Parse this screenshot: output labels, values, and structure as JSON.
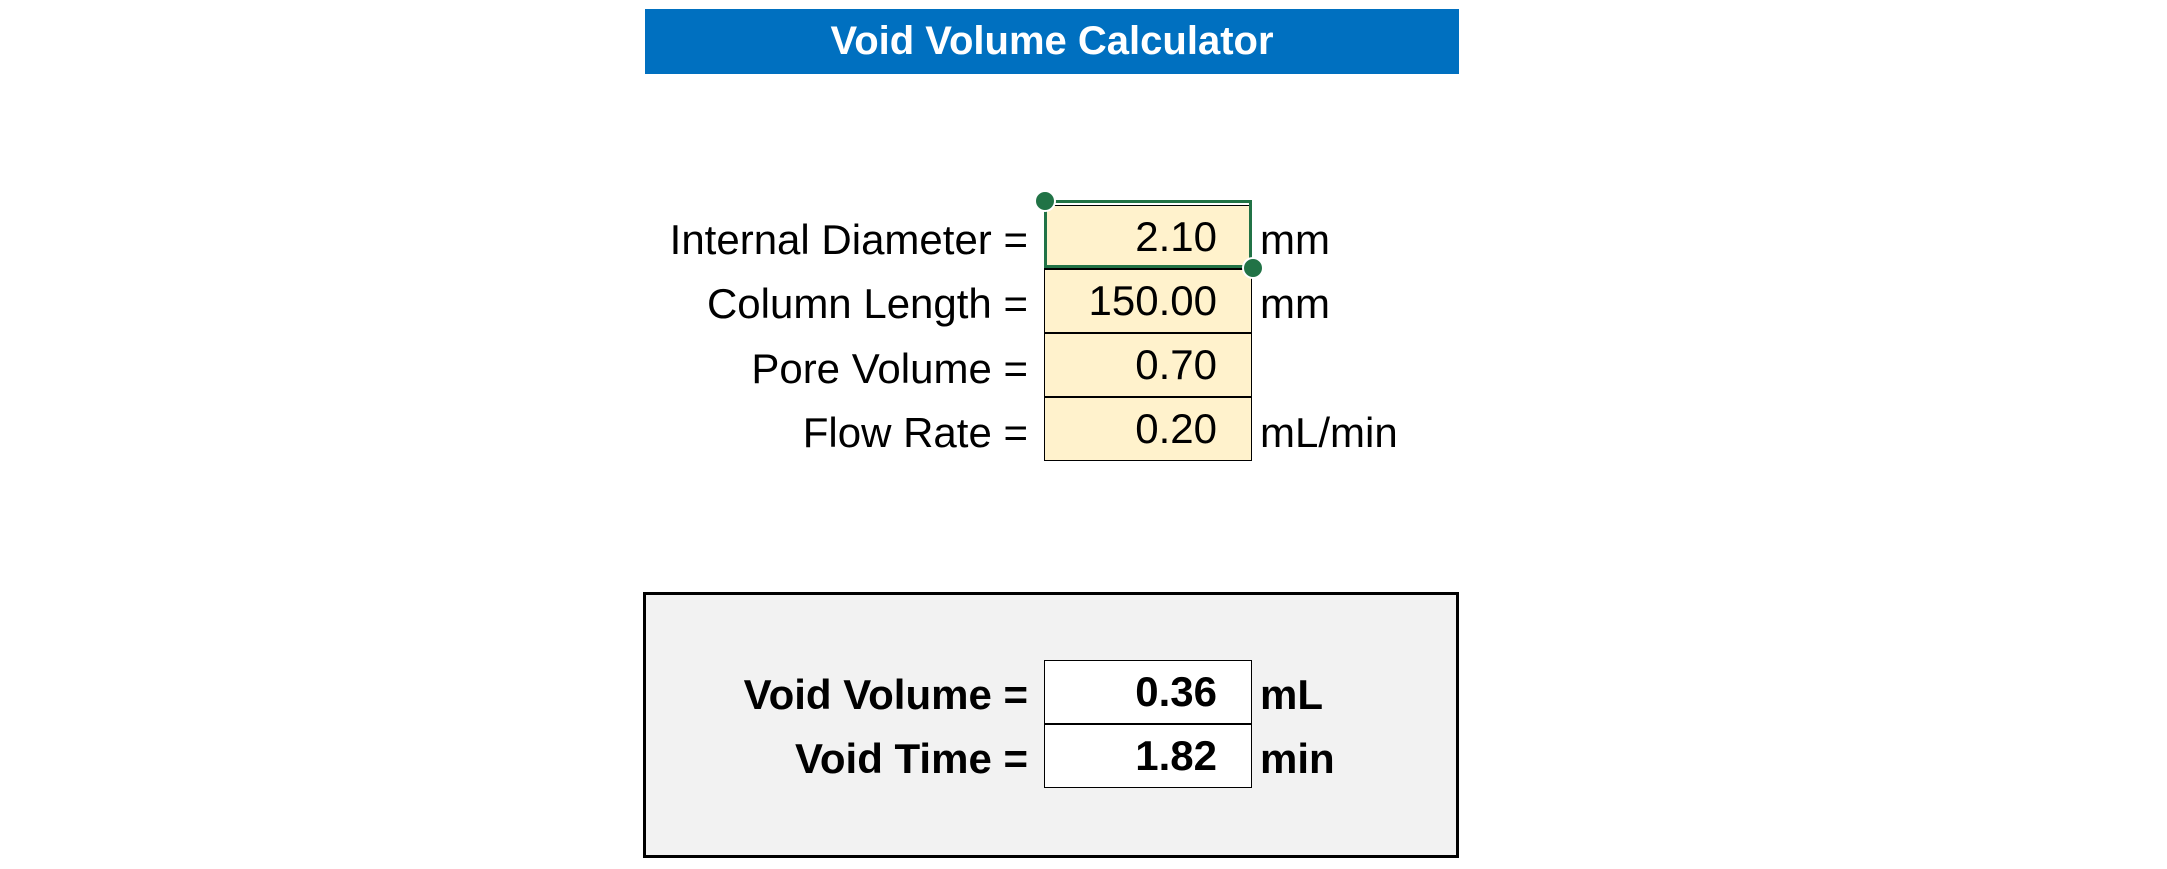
{
  "title": "Void Volume Calculator",
  "inputs": [
    {
      "label": "Internal Diameter =",
      "value": "2.10",
      "unit": "mm"
    },
    {
      "label": "Column Length =",
      "value": "150.00",
      "unit": "mm"
    },
    {
      "label": "Pore Volume =",
      "value": "0.70",
      "unit": ""
    },
    {
      "label": "Flow Rate =",
      "value": "0.20",
      "unit": "mL/min"
    }
  ],
  "results": [
    {
      "label": "Void Volume =",
      "value": "0.36",
      "unit": "mL"
    },
    {
      "label": "Void Time =",
      "value": "1.82",
      "unit": "min"
    }
  ],
  "colors": {
    "title_bg": "#0070c0",
    "input_fill": "#fff2cc",
    "selection": "#217346",
    "results_bg": "#f2f2f2"
  },
  "selected_cell": "inputs.0.value"
}
